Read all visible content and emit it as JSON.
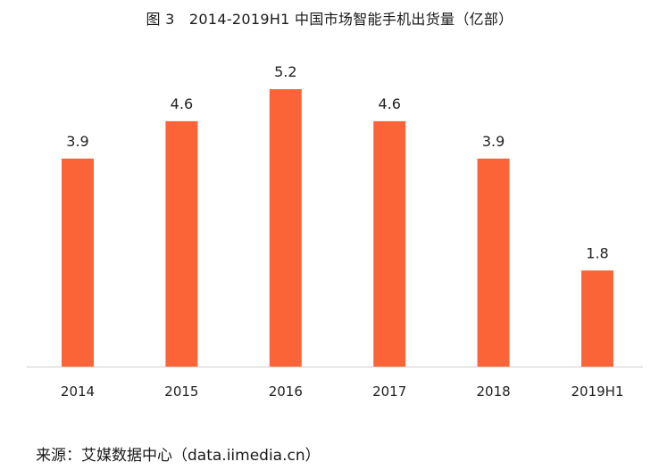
{
  "chart_data": {
    "type": "bar",
    "title": "图 3　2014-2019H1 中国市场智能手机出货量（亿部）",
    "categories": [
      "2014",
      "2015",
      "2016",
      "2017",
      "2018",
      "2019H1"
    ],
    "series": [
      {
        "name": "出货量（亿部）",
        "values": [
          3.9,
          4.6,
          5.2,
          4.6,
          3.9,
          1.8
        ],
        "labels": [
          "3.9",
          "4.6",
          "5.2",
          "4.6",
          "3.9",
          "1.8"
        ]
      }
    ],
    "xlabel": "",
    "ylabel": "",
    "ylim": [
      0,
      5.2
    ],
    "grid": false,
    "legend": "none",
    "bar_color": "#fb6436"
  },
  "source": "来源：艾媒数据中心（data.iimedia.cn）"
}
